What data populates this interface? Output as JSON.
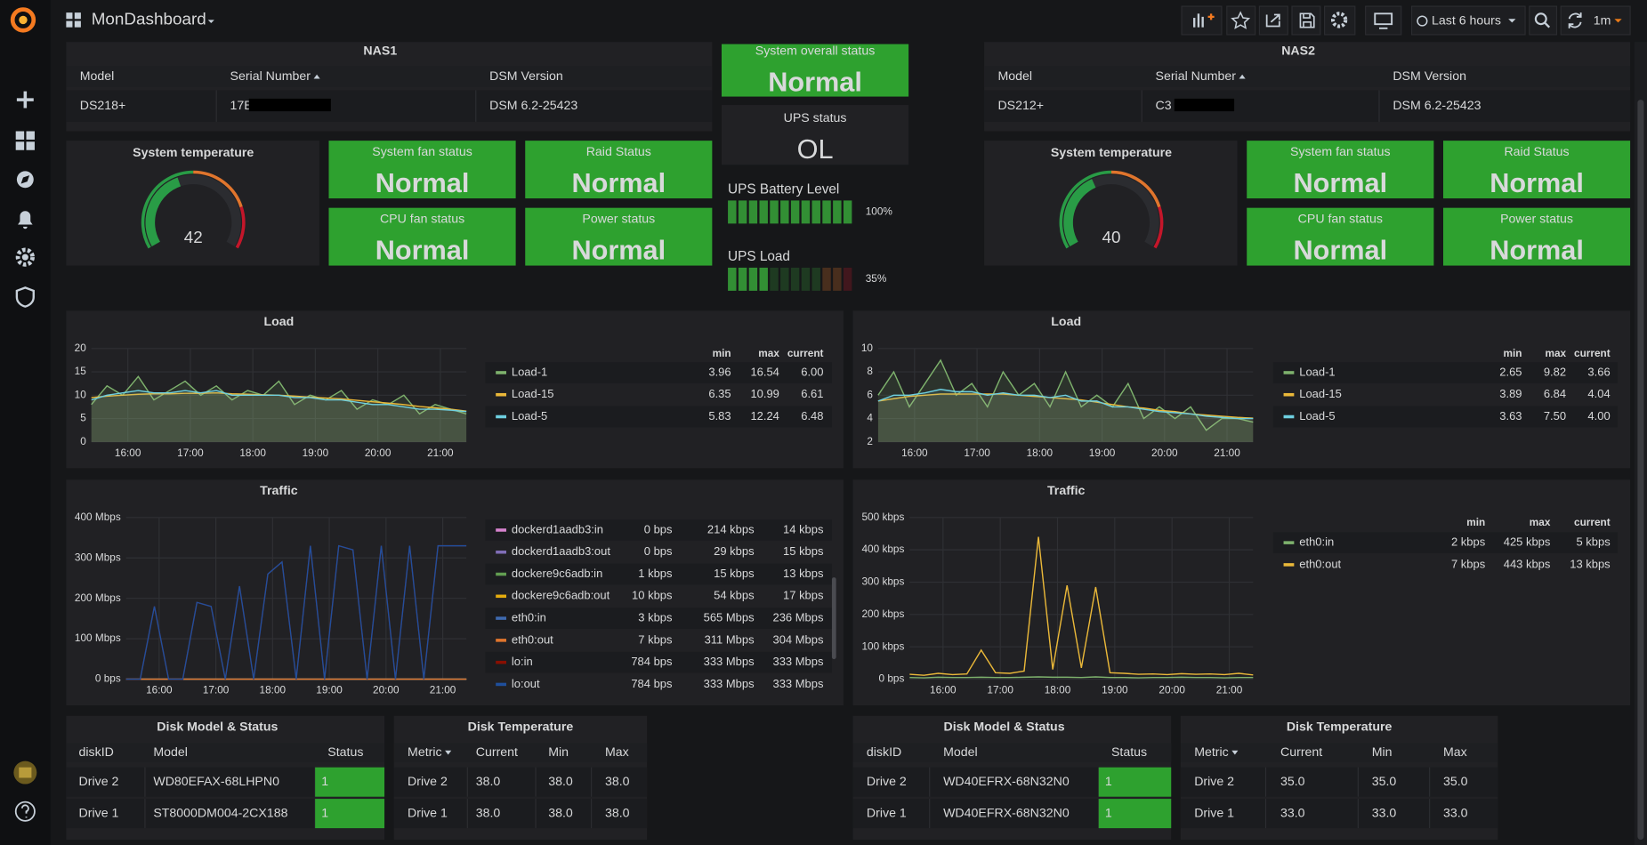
{
  "topbar": {
    "title": "MonDashboard",
    "time_range": "Last 6 hours",
    "refresh": "1m"
  },
  "center": {
    "overall": {
      "title": "System overall status",
      "value": "Normal"
    },
    "ups": {
      "title": "UPS status",
      "value": "OL"
    },
    "bars": [
      {
        "title": "UPS Battery Level",
        "value": 100,
        "label": "100%"
      },
      {
        "title": "UPS Load",
        "value": 35,
        "label": "35%"
      }
    ]
  },
  "nas": [
    {
      "title": "NAS1",
      "columns": [
        "Model",
        "Serial Number",
        "DSM Version"
      ],
      "row": [
        "DS218+",
        "17E",
        "DSM 6.2-25423"
      ],
      "temperature": {
        "title": "System temperature",
        "value": 42,
        "range": [
          0,
          100
        ]
      },
      "statuses": [
        {
          "title": "System fan status",
          "value": "Normal"
        },
        {
          "title": "Raid Status",
          "value": "Normal"
        },
        {
          "title": "CPU fan status",
          "value": "Normal"
        },
        {
          "title": "Power status",
          "value": "Normal"
        }
      ],
      "disks": {
        "title": "Disk Model & Status",
        "columns": [
          "diskID",
          "Model",
          "Status"
        ],
        "rows": [
          [
            "Drive 2",
            "WD80EFAX-68LHPN0",
            "1"
          ],
          [
            "Drive 1",
            "ST8000DM004-2CX188",
            "1"
          ]
        ]
      },
      "disk_temp": {
        "title": "Disk Temperature",
        "columns": [
          "Metric",
          "Current",
          "Min",
          "Max"
        ],
        "rows": [
          [
            "Drive 2",
            "38.0",
            "38.0",
            "38.0"
          ],
          [
            "Drive 1",
            "38.0",
            "38.0",
            "38.0"
          ]
        ]
      }
    },
    {
      "title": "NAS2",
      "columns": [
        "Model",
        "Serial Number",
        "DSM Version"
      ],
      "row": [
        "DS212+",
        "C3",
        "DSM 6.2-25423"
      ],
      "temperature": {
        "title": "System temperature",
        "value": 40,
        "range": [
          0,
          100
        ]
      },
      "statuses": [
        {
          "title": "System fan status",
          "value": "Normal"
        },
        {
          "title": "Raid Status",
          "value": "Normal"
        },
        {
          "title": "CPU fan status",
          "value": "Normal"
        },
        {
          "title": "Power status",
          "value": "Normal"
        }
      ],
      "disks": {
        "title": "Disk Model & Status",
        "columns": [
          "diskID",
          "Model",
          "Status"
        ],
        "rows": [
          [
            "Drive 2",
            "WD40EFRX-68N32N0",
            "1"
          ],
          [
            "Drive 1",
            "WD40EFRX-68N32N0",
            "1"
          ]
        ]
      },
      "disk_temp": {
        "title": "Disk Temperature",
        "columns": [
          "Metric",
          "Current",
          "Min",
          "Max"
        ],
        "rows": [
          [
            "Drive 2",
            "35.0",
            "35.0",
            "35.0"
          ],
          [
            "Drive 1",
            "33.0",
            "33.0",
            "33.0"
          ]
        ]
      }
    }
  ],
  "chart_data": [
    {
      "type": "line",
      "title": "Load",
      "x": [
        "15:25",
        "15:40",
        "15:55",
        "16:10",
        "16:25",
        "16:40",
        "16:55",
        "17:10",
        "17:25",
        "17:40",
        "17:55",
        "18:10",
        "18:25",
        "18:40",
        "18:55",
        "19:10",
        "19:25",
        "19:40",
        "19:55",
        "20:10",
        "20:25",
        "20:40",
        "20:55",
        "21:10",
        "21:25"
      ],
      "xlim": [
        "15:25",
        "21:25"
      ],
      "xticks": [
        "16:00",
        "17:00",
        "18:00",
        "19:00",
        "20:00",
        "21:00"
      ],
      "ylim": [
        0,
        20
      ],
      "yticks": [
        0,
        5,
        10,
        15,
        20
      ],
      "grid": true,
      "legend_columns": [
        "min",
        "max",
        "current"
      ],
      "series": [
        {
          "name": "Load-1",
          "color": "#7eb26d",
          "values": [
            8,
            12,
            10,
            14,
            9,
            11,
            13,
            10,
            12,
            9,
            11,
            10,
            13,
            8,
            10,
            9,
            11,
            7,
            9,
            8,
            10,
            6,
            8,
            7,
            6
          ],
          "min": "3.96",
          "max": "16.54",
          "current": "6.00"
        },
        {
          "name": "Load-15",
          "color": "#eab839",
          "values": [
            9.5,
            9.8,
            10,
            10.2,
            10.3,
            10.3,
            10.4,
            10.4,
            10.5,
            10.3,
            10.2,
            10.1,
            10,
            9.8,
            9.6,
            9.4,
            9.2,
            8.9,
            8.6,
            8.3,
            8,
            7.6,
            7.3,
            7,
            6.6
          ],
          "min": "6.35",
          "max": "10.99",
          "current": "6.61"
        },
        {
          "name": "Load-5",
          "color": "#6ed0e0",
          "values": [
            9,
            10,
            10.5,
            11,
            10.5,
            10.5,
            11,
            10.5,
            11,
            10,
            10,
            10,
            10,
            9.5,
            9.5,
            9,
            9,
            8.5,
            8,
            8,
            7.5,
            7,
            7,
            6.8,
            6.5
          ],
          "min": "5.83",
          "max": "12.24",
          "current": "6.48"
        }
      ]
    },
    {
      "type": "line",
      "title": "Load",
      "x": [
        "15:25",
        "15:40",
        "15:55",
        "16:10",
        "16:25",
        "16:40",
        "16:55",
        "17:10",
        "17:25",
        "17:40",
        "17:55",
        "18:10",
        "18:25",
        "18:40",
        "18:55",
        "19:10",
        "19:25",
        "19:40",
        "19:55",
        "20:10",
        "20:25",
        "20:40",
        "20:55",
        "21:10",
        "21:25"
      ],
      "xlim": [
        "15:25",
        "21:25"
      ],
      "xticks": [
        "16:00",
        "17:00",
        "18:00",
        "19:00",
        "20:00",
        "21:00"
      ],
      "ylim": [
        2,
        10
      ],
      "yticks": [
        2,
        4,
        6,
        8,
        10
      ],
      "grid": true,
      "legend_columns": [
        "min",
        "max",
        "current"
      ],
      "series": [
        {
          "name": "Load-1",
          "color": "#7eb26d",
          "values": [
            6,
            8,
            5,
            7,
            9,
            6,
            7,
            5,
            8,
            6,
            7,
            5,
            8,
            5,
            6,
            5,
            7,
            4,
            5,
            4,
            5,
            3,
            4,
            4,
            3.7
          ],
          "min": "2.65",
          "max": "9.82",
          "current": "3.66"
        },
        {
          "name": "Load-15",
          "color": "#eab839",
          "values": [
            5.5,
            5.7,
            5.9,
            6,
            6.1,
            6.1,
            6.1,
            6.1,
            6.1,
            6,
            5.9,
            5.8,
            5.7,
            5.6,
            5.4,
            5.2,
            5,
            4.9,
            4.7,
            4.6,
            4.4,
            4.3,
            4.2,
            4.1,
            4.04
          ],
          "min": "3.89",
          "max": "6.84",
          "current": "4.04"
        },
        {
          "name": "Load-5",
          "color": "#6ed0e0",
          "values": [
            5.5,
            6,
            6,
            6.2,
            6.5,
            6.3,
            6.3,
            6,
            6.2,
            6,
            6,
            5.8,
            6,
            5.5,
            5.5,
            5,
            5,
            4.8,
            4.6,
            4.5,
            4.4,
            4.2,
            4.1,
            4,
            4
          ],
          "min": "3.63",
          "max": "7.50",
          "current": "4.00"
        }
      ]
    },
    {
      "type": "line",
      "title": "Traffic",
      "x": [
        "15:25",
        "15:40",
        "15:55",
        "16:10",
        "16:25",
        "16:40",
        "16:55",
        "17:10",
        "17:25",
        "17:40",
        "17:55",
        "18:10",
        "18:25",
        "18:40",
        "18:55",
        "19:10",
        "19:25",
        "19:40",
        "19:55",
        "20:10",
        "20:25",
        "20:40",
        "20:55",
        "21:10",
        "21:25"
      ],
      "xlim": [
        "15:25",
        "21:25"
      ],
      "xticks": [
        "16:00",
        "17:00",
        "18:00",
        "19:00",
        "20:00",
        "21:00"
      ],
      "ylim": [
        0,
        400
      ],
      "yticks": [
        {
          "value": 0,
          "label": "0 bps"
        },
        {
          "value": 100,
          "label": "100 Mbps"
        },
        {
          "value": 200,
          "label": "200 Mbps"
        },
        {
          "value": 300,
          "label": "300 Mbps"
        },
        {
          "value": 400,
          "label": "400 Mbps"
        }
      ],
      "grid": true,
      "series": [
        {
          "name": "dockerd1aadb3:in",
          "color": "#d683ce",
          "values": [
            0,
            0,
            0,
            0,
            0,
            0,
            0,
            0,
            0,
            0,
            0,
            0,
            0,
            0,
            0,
            0,
            0,
            0,
            0,
            0,
            0,
            0,
            0,
            0,
            0
          ],
          "min": "0 bps",
          "max": "214 kbps",
          "current": "14 kbps"
        },
        {
          "name": "dockerd1aadb3:out",
          "color": "#806eb7",
          "values": [
            0,
            0,
            0,
            0,
            0,
            0,
            0,
            0,
            0,
            0,
            0,
            0,
            0,
            0,
            0,
            0,
            0,
            0,
            0,
            0,
            0,
            0,
            0,
            0,
            0
          ],
          "min": "0 bps",
          "max": "29 kbps",
          "current": "15 kbps"
        },
        {
          "name": "dockere9c6adb:in",
          "color": "#629e51",
          "values": [
            0,
            0,
            0,
            0,
            0,
            0,
            0,
            0,
            0,
            0,
            0,
            0,
            0,
            0,
            0,
            0,
            0,
            0,
            0,
            0,
            0,
            0,
            0,
            0,
            0
          ],
          "min": "1 kbps",
          "max": "15 kbps",
          "current": "13 kbps"
        },
        {
          "name": "dockere9c6adb:out",
          "color": "#e5ac0e",
          "values": [
            0,
            0,
            0,
            0,
            0,
            0,
            0,
            0,
            0,
            0,
            0,
            0,
            0,
            0,
            0,
            0,
            0,
            0,
            0,
            0,
            0,
            0,
            0,
            0,
            0
          ],
          "min": "10 kbps",
          "max": "54 kbps",
          "current": "17 kbps"
        },
        {
          "name": "eth0:in",
          "color": "#3f6ab0",
          "values": [
            0,
            0,
            0,
            0,
            0,
            0,
            0,
            0,
            0,
            0,
            0,
            0,
            0,
            0,
            0,
            0,
            0,
            0,
            0,
            0,
            0,
            0,
            0,
            0,
            0
          ],
          "min": "3 kbps",
          "max": "565 Mbps",
          "current": "236 Mbps"
        },
        {
          "name": "eth0:out",
          "color": "#e0752d",
          "values": [
            0,
            0,
            0,
            0,
            0,
            0,
            0,
            0,
            0,
            0,
            0,
            0,
            0,
            0,
            0,
            0,
            0,
            0,
            0,
            0,
            0,
            0,
            0,
            0,
            0
          ],
          "min": "7 kbps",
          "max": "311 Mbps",
          "current": "304 Mbps"
        },
        {
          "name": "lo:in",
          "color": "#890f02",
          "values": [
            0,
            0,
            180,
            0,
            0,
            190,
            180,
            0,
            230,
            0,
            260,
            290,
            0,
            330,
            0,
            330,
            320,
            0,
            330,
            0,
            330,
            0,
            330,
            330,
            330
          ],
          "min": "784 bps",
          "max": "333 Mbps",
          "current": "333 Mbps"
        },
        {
          "name": "lo:out",
          "color": "#1f4f9c",
          "values": [
            0,
            0,
            180,
            0,
            0,
            190,
            180,
            0,
            230,
            0,
            260,
            290,
            0,
            330,
            0,
            330,
            320,
            0,
            330,
            0,
            330,
            0,
            330,
            330,
            330
          ],
          "min": "784 bps",
          "max": "333 Mbps",
          "current": "333 Mbps"
        }
      ]
    },
    {
      "type": "line",
      "title": "Traffic",
      "x": [
        "15:25",
        "15:40",
        "15:55",
        "16:10",
        "16:25",
        "16:40",
        "16:55",
        "17:10",
        "17:25",
        "17:40",
        "17:55",
        "18:10",
        "18:25",
        "18:40",
        "18:55",
        "19:10",
        "19:25",
        "19:40",
        "19:55",
        "20:10",
        "20:25",
        "20:40",
        "20:55",
        "21:10",
        "21:25"
      ],
      "xlim": [
        "15:25",
        "21:25"
      ],
      "xticks": [
        "16:00",
        "17:00",
        "18:00",
        "19:00",
        "20:00",
        "21:00"
      ],
      "ylim": [
        0,
        500
      ],
      "yticks": [
        {
          "value": 0,
          "label": "0 bps"
        },
        {
          "value": 100,
          "label": "100 kbps"
        },
        {
          "value": 200,
          "label": "200 kbps"
        },
        {
          "value": 300,
          "label": "300 kbps"
        },
        {
          "value": 400,
          "label": "400 kbps"
        },
        {
          "value": 500,
          "label": "500 kbps"
        }
      ],
      "grid": true,
      "legend_columns": [
        "min",
        "max",
        "current"
      ],
      "series": [
        {
          "name": "eth0:in",
          "color": "#7eb26d",
          "values": [
            5,
            4,
            6,
            5,
            5,
            6,
            5,
            5,
            6,
            7,
            6,
            6,
            5,
            7,
            5,
            5,
            4,
            5,
            5,
            6,
            5,
            5,
            4,
            5,
            5
          ],
          "min": "2 kbps",
          "max": "425 kbps",
          "current": "5 kbps"
        },
        {
          "name": "eth0:out",
          "color": "#eab839",
          "values": [
            15,
            12,
            18,
            14,
            16,
            90,
            20,
            18,
            25,
            440,
            30,
            290,
            35,
            285,
            20,
            18,
            15,
            16,
            14,
            17,
            15,
            16,
            14,
            18,
            13
          ],
          "min": "7 kbps",
          "max": "443 kbps",
          "current": "13 kbps"
        }
      ]
    }
  ]
}
